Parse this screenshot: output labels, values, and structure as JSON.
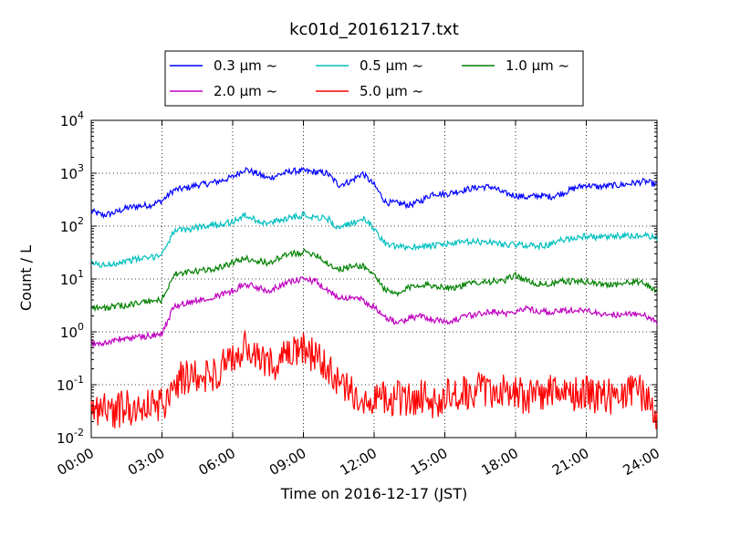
{
  "chart_data": {
    "type": "line",
    "title": "kc01d_20161217.txt",
    "xlabel": "Time on 2016-12-17 (JST)",
    "ylabel": "Count / L",
    "xlim": [
      "00:00",
      "24:00"
    ],
    "x_ticks": [
      "00:00",
      "03:00",
      "06:00",
      "09:00",
      "12:00",
      "15:00",
      "18:00",
      "21:00",
      "24:00"
    ],
    "y_scale": "log",
    "ylim": [
      0.01,
      10000
    ],
    "y_ticks": [
      {
        "base": "10",
        "exp": "-2"
      },
      {
        "base": "10",
        "exp": "-1"
      },
      {
        "base": "10",
        "exp": "0"
      },
      {
        "base": "10",
        "exp": "1"
      },
      {
        "base": "10",
        "exp": "2"
      },
      {
        "base": "10",
        "exp": "3"
      },
      {
        "base": "10",
        "exp": "4"
      }
    ],
    "grid": true,
    "legend_position": "top-center",
    "x": [
      "00:00",
      "00:30",
      "01:00",
      "01:30",
      "02:00",
      "02:30",
      "03:00",
      "03:30",
      "04:00",
      "04:30",
      "05:00",
      "05:30",
      "06:00",
      "06:30",
      "07:00",
      "07:30",
      "08:00",
      "08:30",
      "09:00",
      "09:30",
      "10:00",
      "10:30",
      "11:00",
      "11:30",
      "12:00",
      "12:30",
      "13:00",
      "13:30",
      "14:00",
      "14:30",
      "15:00",
      "15:30",
      "16:00",
      "16:30",
      "17:00",
      "17:30",
      "18:00",
      "18:30",
      "19:00",
      "19:30",
      "20:00",
      "20:30",
      "21:00",
      "21:30",
      "22:00",
      "22:30",
      "23:00",
      "23:30",
      "24:00"
    ],
    "series": [
      {
        "name": "0.3 μm ~",
        "color": "#0000ff",
        "values": [
          190,
          160,
          180,
          220,
          240,
          250,
          300,
          480,
          520,
          600,
          640,
          720,
          850,
          1200,
          1000,
          800,
          950,
          1100,
          1100,
          1050,
          1000,
          600,
          700,
          1000,
          600,
          280,
          270,
          250,
          300,
          420,
          400,
          450,
          500,
          550,
          550,
          420,
          380,
          350,
          380,
          360,
          420,
          520,
          600,
          550,
          580,
          600,
          650,
          700,
          600
        ]
      },
      {
        "name": "0.5 μm ~",
        "color": "#00bfbf",
        "values": [
          20,
          18,
          20,
          22,
          24,
          25,
          30,
          80,
          85,
          95,
          105,
          110,
          120,
          160,
          130,
          110,
          130,
          150,
          160,
          150,
          140,
          90,
          110,
          140,
          90,
          45,
          40,
          40,
          42,
          42,
          45,
          48,
          50,
          50,
          50,
          45,
          44,
          44,
          42,
          45,
          55,
          60,
          65,
          60,
          62,
          65,
          65,
          65,
          60
        ]
      },
      {
        "name": "1.0 μm ~",
        "color": "#008000",
        "values": [
          3,
          2.8,
          3,
          3.2,
          3.5,
          3.8,
          4,
          12,
          13,
          14,
          15,
          17,
          20,
          25,
          22,
          20,
          25,
          30,
          32,
          30,
          20,
          15,
          17,
          18,
          12,
          6,
          5,
          7,
          8,
          7.5,
          7,
          7,
          8,
          9,
          9,
          9,
          12,
          9,
          8,
          8,
          9,
          9,
          9,
          8,
          8,
          8,
          9,
          8,
          6
        ]
      },
      {
        "name": "2.0 μm ~",
        "color": "#bf00bf",
        "values": [
          0.6,
          0.6,
          0.7,
          0.75,
          0.8,
          0.85,
          0.9,
          3,
          3.5,
          4,
          4.5,
          5,
          6,
          8,
          7,
          6,
          7.5,
          9,
          10,
          9,
          6,
          4.5,
          4.5,
          4,
          3,
          1.8,
          1.5,
          1.8,
          2,
          1.7,
          1.6,
          1.7,
          2,
          2.2,
          2.5,
          2.2,
          2.5,
          2.8,
          2.5,
          2.3,
          2.5,
          2.6,
          2.5,
          2.2,
          2.1,
          2.1,
          2.2,
          2,
          1.5
        ]
      },
      {
        "name": "5.0 μm ~",
        "color": "#ff0000",
        "values": [
          0.03,
          0.04,
          0.03,
          0.04,
          0.035,
          0.04,
          0.04,
          0.12,
          0.13,
          0.14,
          0.15,
          0.2,
          0.3,
          0.5,
          0.3,
          0.25,
          0.28,
          0.35,
          0.45,
          0.35,
          0.2,
          0.1,
          0.07,
          0.06,
          0.06,
          0.05,
          0.06,
          0.05,
          0.06,
          0.05,
          0.06,
          0.06,
          0.07,
          0.08,
          0.08,
          0.07,
          0.07,
          0.06,
          0.07,
          0.07,
          0.06,
          0.07,
          0.07,
          0.06,
          0.06,
          0.06,
          0.07,
          0.07,
          0.03
        ]
      }
    ]
  }
}
